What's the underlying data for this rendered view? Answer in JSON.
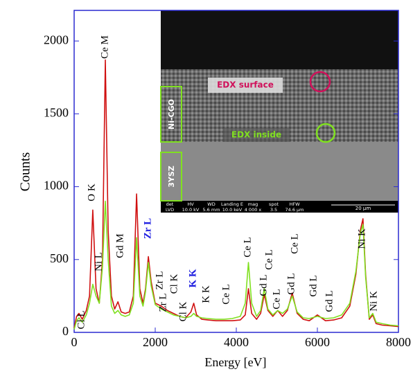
{
  "chart_data": {
    "type": "line",
    "xlabel": "Energy [eV]",
    "ylabel": "Counts",
    "xlim": [
      0,
      8000
    ],
    "xticks": [
      0,
      2000,
      4000,
      6000,
      8000
    ],
    "ylim": [
      0,
      2210
    ],
    "yticks": [
      0,
      500,
      1000,
      1500,
      2000
    ],
    "x": [
      0,
      60,
      120,
      200,
      300,
      380,
      460,
      540,
      620,
      700,
      770,
      840,
      920,
      1000,
      1080,
      1160,
      1260,
      1360,
      1460,
      1540,
      1620,
      1700,
      1760,
      1830,
      1900,
      2000,
      2150,
      2300,
      2450,
      2600,
      2750,
      2880,
      2950,
      3020,
      3150,
      3300,
      3500,
      3700,
      3900,
      4100,
      4220,
      4300,
      4380,
      4500,
      4600,
      4690,
      4780,
      4900,
      5020,
      5140,
      5260,
      5380,
      5500,
      5650,
      5800,
      6000,
      6200,
      6400,
      6600,
      6800,
      6950,
      7060,
      7125,
      7190,
      7280,
      7365,
      7450,
      7600,
      7800,
      8000
    ],
    "series": [
      {
        "color": "#d01010",
        "values": [
          30,
          110,
          130,
          90,
          150,
          250,
          840,
          300,
          200,
          500,
          1870,
          700,
          250,
          160,
          210,
          140,
          130,
          140,
          250,
          950,
          300,
          200,
          300,
          520,
          350,
          200,
          180,
          150,
          130,
          110,
          100,
          140,
          200,
          120,
          90,
          85,
          80,
          80,
          80,
          85,
          120,
          300,
          130,
          90,
          130,
          260,
          150,
          110,
          150,
          110,
          150,
          270,
          130,
          90,
          80,
          120,
          80,
          85,
          100,
          180,
          400,
          700,
          780,
          400,
          90,
          120,
          60,
          50,
          45,
          40
        ]
      },
      {
        "color": "#80e020",
        "values": [
          20,
          80,
          100,
          70,
          120,
          200,
          330,
          250,
          200,
          450,
          900,
          500,
          180,
          130,
          150,
          120,
          110,
          120,
          200,
          650,
          250,
          180,
          280,
          480,
          320,
          190,
          160,
          140,
          120,
          110,
          100,
          110,
          130,
          110,
          100,
          95,
          90,
          90,
          95,
          110,
          200,
          480,
          200,
          110,
          150,
          300,
          160,
          120,
          150,
          130,
          160,
          250,
          140,
          100,
          95,
          110,
          95,
          100,
          120,
          200,
          420,
          680,
          740,
          380,
          100,
          130,
          70,
          60,
          50,
          45
        ]
      }
    ],
    "annotations": [
      "Cl L",
      "O K",
      "Ni L",
      "Ce M",
      "Gd M",
      "Zr L",
      "Zr L",
      "Zr L",
      "Cl K",
      "Cl K",
      "K K",
      "K K",
      "Ce L",
      "Ce L",
      "Gd L",
      "Ce L",
      "Ce L",
      "Gd L",
      "Ce L",
      "Gd L",
      "Gd L",
      "Ni K",
      "Ni K"
    ],
    "inset": {
      "surface": "EDX surface",
      "inside": "EDX inside",
      "layer1": "Ni-CGO",
      "layer2": "3YSZ",
      "info": [
        "det",
        "LVD",
        "HV",
        "10.0 kV",
        "WD",
        "5.6 mm",
        "Landing E",
        "10.0 keV",
        "mag",
        "4 000 x",
        "spot",
        "3.5",
        "HFW",
        "74.6 µm"
      ],
      "scale": "20 µm"
    }
  }
}
